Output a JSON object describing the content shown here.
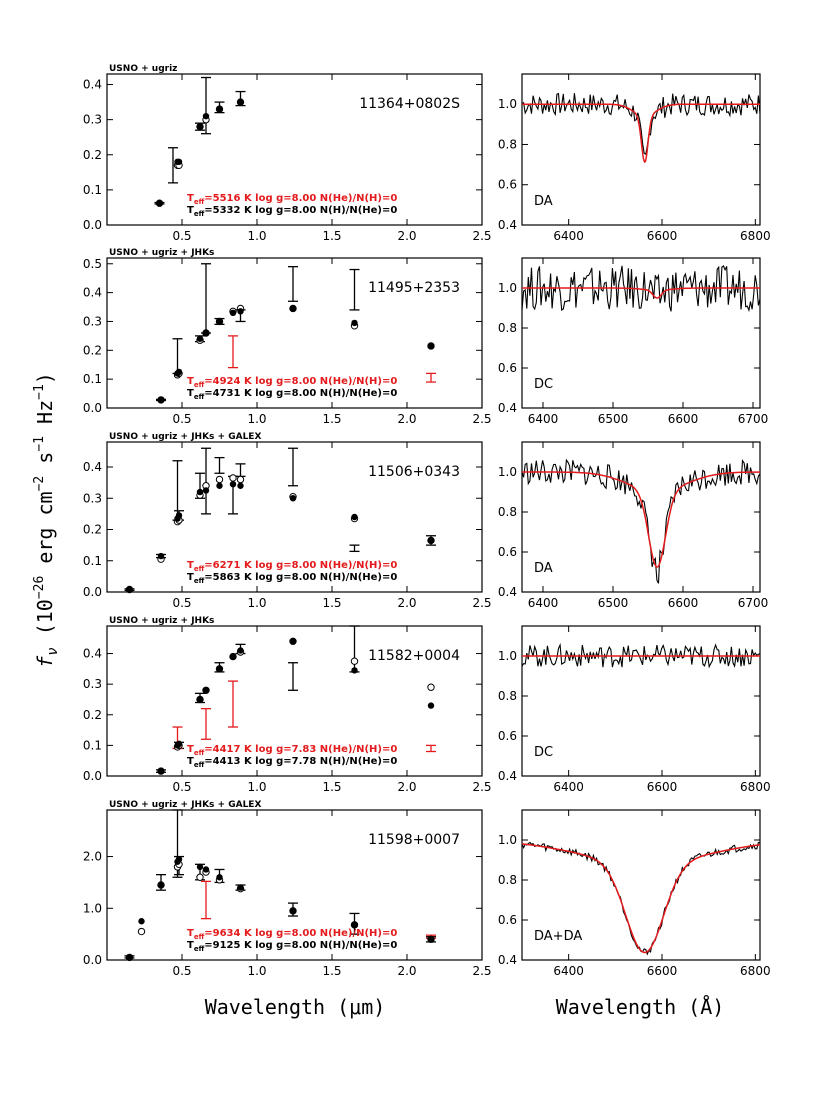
{
  "figure": {
    "x_title_left": "Wavelength (μm)",
    "x_title_right": "Wavelength (Å)",
    "y_title": "f_ν (10^-26 erg cm^-2 s^-1 Hz^-1)",
    "y_title_parts": {
      "f": "f",
      "nu": "ν",
      "open": " (10",
      "exp1": "−26",
      "erg": " erg cm",
      "exp2": "−2",
      "s": " s",
      "exp3": "−1",
      "hz": " Hz",
      "exp4": "−1",
      "close": ")"
    },
    "colors": {
      "data": "#000000",
      "model": "#e41a1c"
    }
  },
  "chart_data": [
    {
      "id": "p1",
      "type": "scatter",
      "object": "11364+0802S",
      "photometry_label": "USNO + ugriz",
      "xlim": [
        0,
        2.5
      ],
      "ylim": [
        0,
        0.43
      ],
      "xticks": [
        0.5,
        1.0,
        1.5,
        2.0,
        2.5
      ],
      "xtick_labels": [
        "0.5",
        "1.0",
        "1.5",
        "2.0",
        "2.5"
      ],
      "yticks": [
        0,
        0.1,
        0.2,
        0.3,
        0.4
      ],
      "ytick_labels": [
        "0.0",
        "0.1",
        "0.2",
        "0.3",
        "0.4"
      ],
      "observed_black": [
        {
          "x": 0.44,
          "lo": 0.12,
          "hi": 0.22
        },
        {
          "x": 0.66,
          "lo": 0.26,
          "hi": 0.42
        },
        {
          "x": 0.75,
          "lo": 0.32,
          "hi": 0.35
        },
        {
          "x": 0.89,
          "lo": 0.34,
          "hi": 0.38
        },
        {
          "x": 0.62,
          "lo": 0.27,
          "hi": 0.29
        },
        {
          "x": 0.35,
          "lo": 0.06,
          "hi": 0.064
        }
      ],
      "observed_red": [],
      "model_filled": [
        [
          0.35,
          0.062
        ],
        [
          0.47,
          0.18
        ],
        [
          0.48,
          0.18
        ],
        [
          0.62,
          0.28
        ],
        [
          0.66,
          0.31
        ],
        [
          0.75,
          0.33
        ],
        [
          0.89,
          0.35
        ]
      ],
      "model_open": [
        [
          0.35,
          0.062
        ],
        [
          0.47,
          0.17
        ],
        [
          0.48,
          0.17
        ],
        [
          0.62,
          0.28
        ],
        [
          0.66,
          0.3
        ],
        [
          0.75,
          0.33
        ],
        [
          0.89,
          0.35
        ]
      ],
      "fit_red": "T_eff=5516 K   log g=8.00   N(He)/N(H)=0",
      "fit_black": "T_eff=5332 K   log g=8.00   N(H)/N(He)=0",
      "fit_red_parts": {
        "t": "T",
        "sub": "eff",
        "rest": "=5516 K   log g=8.00   N(He)/N(H)=0"
      },
      "fit_black_parts": {
        "t": "T",
        "sub": "eff",
        "rest": "=5332 K   log g=8.00   N(H)/N(He)=0"
      },
      "spectrum": {
        "xlim": [
          6300,
          6810
        ],
        "ylim": [
          0.4,
          1.15
        ],
        "xticks": [
          6400,
          6600,
          6800
        ],
        "xtick_labels": [
          "6400",
          "6600",
          "6800"
        ],
        "yticks": [
          0.4,
          0.6,
          0.8,
          1.0
        ],
        "ytick_labels": [
          "0.4",
          "0.6",
          "0.8",
          "1.0"
        ],
        "class": "DA",
        "line_center": 6563,
        "line_depth": 0.23,
        "line_width": 7,
        "noise": 0.035
      }
    },
    {
      "id": "p2",
      "type": "scatter",
      "object": "11495+2353",
      "photometry_label": "USNO + ugriz + JHKs",
      "xlim": [
        0,
        2.5
      ],
      "ylim": [
        0,
        0.52
      ],
      "xticks": [
        0.5,
        1.0,
        1.5,
        2.0,
        2.5
      ],
      "xtick_labels": [
        "0.5",
        "1.0",
        "1.5",
        "2.0",
        "2.5"
      ],
      "yticks": [
        0,
        0.1,
        0.2,
        0.3,
        0.4,
        0.5
      ],
      "ytick_labels": [
        "0.0",
        "0.1",
        "0.2",
        "0.3",
        "0.4",
        "0.5"
      ],
      "observed_black": [
        {
          "x": 0.36,
          "lo": 0.026,
          "hi": 0.03
        },
        {
          "x": 0.47,
          "lo": 0.12,
          "hi": 0.24
        },
        {
          "x": 0.62,
          "lo": 0.23,
          "hi": 0.25
        },
        {
          "x": 0.66,
          "lo": 0.26,
          "hi": 0.5
        },
        {
          "x": 0.75,
          "lo": 0.29,
          "hi": 0.31
        },
        {
          "x": 0.89,
          "lo": 0.3,
          "hi": 0.34
        },
        {
          "x": 1.24,
          "lo": 0.37,
          "hi": 0.49
        },
        {
          "x": 1.65,
          "lo": 0.34,
          "hi": 0.48
        }
      ],
      "observed_red": [
        {
          "x": 0.84,
          "lo": 0.14,
          "hi": 0.25
        },
        {
          "x": 2.16,
          "lo": 0.09,
          "hi": 0.12
        }
      ],
      "model_filled": [
        [
          0.36,
          0.028
        ],
        [
          0.47,
          0.12
        ],
        [
          0.48,
          0.125
        ],
        [
          0.62,
          0.24
        ],
        [
          0.66,
          0.26
        ],
        [
          0.75,
          0.3
        ],
        [
          0.84,
          0.33
        ],
        [
          0.89,
          0.335
        ],
        [
          1.24,
          0.345
        ],
        [
          1.65,
          0.295
        ],
        [
          2.16,
          0.215
        ]
      ],
      "model_open": [
        [
          0.36,
          0.028
        ],
        [
          0.47,
          0.115
        ],
        [
          0.48,
          0.12
        ],
        [
          0.62,
          0.235
        ],
        [
          0.66,
          0.26
        ],
        [
          0.75,
          0.3
        ],
        [
          0.84,
          0.335
        ],
        [
          0.89,
          0.345
        ],
        [
          1.24,
          0.345
        ],
        [
          1.65,
          0.285
        ],
        [
          2.16,
          0.215
        ]
      ],
      "fit_red": "T_eff=4924 K   log g=8.00   N(He)/N(H)=0",
      "fit_black": "T_eff=4731 K   log g=8.00   N(H)/N(He)=0",
      "fit_red_parts": {
        "t": "T",
        "sub": "eff",
        "rest": "=4924 K   log g=8.00   N(He)/N(H)=0"
      },
      "fit_black_parts": {
        "t": "T",
        "sub": "eff",
        "rest": "=4731 K   log g=8.00   N(H)/N(He)=0"
      },
      "spectrum": {
        "xlim": [
          6370,
          6710
        ],
        "ylim": [
          0.4,
          1.15
        ],
        "xticks": [
          6400,
          6500,
          6600,
          6700
        ],
        "xtick_labels": [
          "6400",
          "6500",
          "6600",
          "6700"
        ],
        "yticks": [
          0.4,
          0.6,
          0.8,
          1.0
        ],
        "ytick_labels": [
          "0.4",
          "0.6",
          "0.8",
          "1.0"
        ],
        "class": "DC",
        "line_center": 6563,
        "line_depth": 0.04,
        "line_width": 6,
        "noise": 0.07
      }
    },
    {
      "id": "p3",
      "type": "scatter",
      "object": "11506+0343",
      "photometry_label": "USNO + ugriz + JHKs + GALEX",
      "xlim": [
        0,
        2.5
      ],
      "ylim": [
        0,
        0.48
      ],
      "xticks": [
        0.5,
        1.0,
        1.5,
        2.0,
        2.5
      ],
      "xtick_labels": [
        "0.5",
        "1.0",
        "1.5",
        "2.0",
        "2.5"
      ],
      "yticks": [
        0,
        0.1,
        0.2,
        0.3,
        0.4
      ],
      "ytick_labels": [
        "0.0",
        "0.1",
        "0.2",
        "0.3",
        "0.4"
      ],
      "observed_black": [
        {
          "x": 0.15,
          "lo": 0.005,
          "hi": 0.01
        },
        {
          "x": 0.36,
          "lo": 0.11,
          "hi": 0.12
        },
        {
          "x": 0.47,
          "lo": 0.23,
          "hi": 0.42
        },
        {
          "x": 0.48,
          "lo": 0.23,
          "hi": 0.26
        },
        {
          "x": 0.62,
          "lo": 0.3,
          "hi": 0.38
        },
        {
          "x": 0.66,
          "lo": 0.25,
          "hi": 0.46
        },
        {
          "x": 0.75,
          "lo": 0.38,
          "hi": 0.43
        },
        {
          "x": 0.84,
          "lo": 0.25,
          "hi": 0.37
        },
        {
          "x": 0.89,
          "lo": 0.37,
          "hi": 0.41
        },
        {
          "x": 1.24,
          "lo": 0.34,
          "hi": 0.46
        },
        {
          "x": 1.65,
          "lo": 0.13,
          "hi": 0.15
        },
        {
          "x": 2.16,
          "lo": 0.15,
          "hi": 0.18
        }
      ],
      "observed_red": [],
      "model_filled": [
        [
          0.15,
          0.008
        ],
        [
          0.36,
          0.115
        ],
        [
          0.47,
          0.235
        ],
        [
          0.48,
          0.245
        ],
        [
          0.62,
          0.32
        ],
        [
          0.66,
          0.325
        ],
        [
          0.75,
          0.34
        ],
        [
          0.84,
          0.345
        ],
        [
          0.89,
          0.34
        ],
        [
          1.24,
          0.3
        ],
        [
          1.65,
          0.24
        ],
        [
          2.16,
          0.165
        ]
      ],
      "model_open": [
        [
          0.15,
          0.008
        ],
        [
          0.36,
          0.105
        ],
        [
          0.47,
          0.225
        ],
        [
          0.48,
          0.23
        ],
        [
          0.62,
          0.31
        ],
        [
          0.66,
          0.34
        ],
        [
          0.75,
          0.36
        ],
        [
          0.84,
          0.365
        ],
        [
          0.89,
          0.36
        ],
        [
          1.24,
          0.305
        ],
        [
          1.65,
          0.235
        ],
        [
          2.16,
          0.165
        ]
      ],
      "fit_red": "T_eff=6271 K   log g=8.00   N(He)/N(H)=0",
      "fit_black": "T_eff=5863 K   log g=8.00   N(H)/N(He)=0",
      "fit_red_parts": {
        "t": "T",
        "sub": "eff",
        "rest": "=6271 K   log g=8.00   N(He)/N(H)=0"
      },
      "fit_black_parts": {
        "t": "T",
        "sub": "eff",
        "rest": "=5863 K   log g=8.00   N(H)/N(He)=0"
      },
      "spectrum": {
        "xlim": [
          6370,
          6710
        ],
        "ylim": [
          0.4,
          1.15
        ],
        "xticks": [
          6400,
          6500,
          6600,
          6700
        ],
        "xtick_labels": [
          "6400",
          "6500",
          "6600",
          "6700"
        ],
        "yticks": [
          0.4,
          0.6,
          0.8,
          1.0
        ],
        "ytick_labels": [
          "0.4",
          "0.6",
          "0.8",
          "1.0"
        ],
        "class": "DA",
        "line_center": 6563,
        "line_depth": 0.38,
        "line_width": 12,
        "noise": 0.04
      }
    },
    {
      "id": "p4",
      "type": "scatter",
      "object": "11582+0004",
      "photometry_label": "USNO + ugriz + JHKs",
      "xlim": [
        0,
        2.5
      ],
      "ylim": [
        0,
        0.49
      ],
      "xticks": [
        0.5,
        1.0,
        1.5,
        2.0,
        2.5
      ],
      "xtick_labels": [
        "0.5",
        "1.0",
        "1.5",
        "2.0",
        "2.5"
      ],
      "yticks": [
        0,
        0.1,
        0.2,
        0.3,
        0.4
      ],
      "ytick_labels": [
        "0.0",
        "0.1",
        "0.2",
        "0.3",
        "0.4"
      ],
      "observed_black": [
        {
          "x": 0.36,
          "lo": 0.012,
          "hi": 0.02
        },
        {
          "x": 0.48,
          "lo": 0.09,
          "hi": 0.11
        },
        {
          "x": 0.62,
          "lo": 0.24,
          "hi": 0.27
        },
        {
          "x": 0.75,
          "lo": 0.34,
          "hi": 0.37
        },
        {
          "x": 0.89,
          "lo": 0.4,
          "hi": 0.43
        },
        {
          "x": 1.24,
          "lo": 0.28,
          "hi": 0.37
        },
        {
          "x": 1.65,
          "lo": 0.34,
          "hi": 0.49
        }
      ],
      "observed_red": [
        {
          "x": 0.47,
          "lo": 0.09,
          "hi": 0.16
        },
        {
          "x": 0.66,
          "lo": 0.12,
          "hi": 0.22
        },
        {
          "x": 0.84,
          "lo": 0.16,
          "hi": 0.31
        },
        {
          "x": 2.16,
          "lo": 0.08,
          "hi": 0.1
        }
      ],
      "model_filled": [
        [
          0.36,
          0.016
        ],
        [
          0.47,
          0.1
        ],
        [
          0.48,
          0.105
        ],
        [
          0.62,
          0.25
        ],
        [
          0.66,
          0.28
        ],
        [
          0.75,
          0.35
        ],
        [
          0.84,
          0.39
        ],
        [
          0.89,
          0.41
        ],
        [
          1.24,
          0.44
        ],
        [
          1.65,
          0.345
        ],
        [
          2.16,
          0.23
        ]
      ],
      "model_open": [
        [
          0.36,
          0.016
        ],
        [
          0.47,
          0.095
        ],
        [
          0.48,
          0.1
        ],
        [
          0.62,
          0.25
        ],
        [
          0.66,
          0.28
        ],
        [
          0.75,
          0.35
        ],
        [
          0.84,
          0.39
        ],
        [
          0.89,
          0.405
        ],
        [
          1.24,
          0.44
        ],
        [
          1.65,
          0.375
        ],
        [
          2.16,
          0.29
        ]
      ],
      "fit_red": "T_eff=4417 K   log g=7.83   N(He)/N(H)=0",
      "fit_black": "T_eff=4413 K   log g=7.78   N(H)/N(He)=0",
      "fit_red_parts": {
        "t": "T",
        "sub": "eff",
        "rest": "=4417 K   log g=7.83   N(He)/N(H)=0"
      },
      "fit_black_parts": {
        "t": "T",
        "sub": "eff",
        "rest": "=4413 K   log g=7.78   N(H)/N(He)=0"
      },
      "spectrum": {
        "xlim": [
          6300,
          6810
        ],
        "ylim": [
          0.4,
          1.15
        ],
        "xticks": [
          6400,
          6600,
          6800
        ],
        "xtick_labels": [
          "6400",
          "6600",
          "6800"
        ],
        "yticks": [
          0.4,
          0.6,
          0.8,
          1.0
        ],
        "ytick_labels": [
          "0.4",
          "0.6",
          "0.8",
          "1.0"
        ],
        "class": "DC",
        "line_center": 6563,
        "line_depth": 0.0,
        "line_width": 6,
        "noise": 0.035
      }
    },
    {
      "id": "p5",
      "type": "scatter",
      "object": "11598+0007",
      "photometry_label": "USNO + ugriz + JHKs + GALEX",
      "xlim": [
        0,
        2.5
      ],
      "ylim": [
        0,
        2.9
      ],
      "xticks": [
        0.5,
        1.0,
        1.5,
        2.0,
        2.5
      ],
      "xtick_labels": [
        "0.5",
        "1.0",
        "1.5",
        "2.0",
        "2.5"
      ],
      "yticks": [
        0,
        1.0,
        2.0
      ],
      "ytick_labels": [
        "0.0",
        "1.0",
        "2.0"
      ],
      "observed_black": [
        {
          "x": 0.15,
          "lo": 0.04,
          "hi": 0.08
        },
        {
          "x": 0.36,
          "lo": 1.35,
          "hi": 1.65
        },
        {
          "x": 0.47,
          "lo": 1.6,
          "hi": 2.9
        },
        {
          "x": 0.48,
          "lo": 1.65,
          "hi": 2.0
        },
        {
          "x": 0.62,
          "lo": 1.55,
          "hi": 1.85
        },
        {
          "x": 0.75,
          "lo": 1.5,
          "hi": 1.75
        },
        {
          "x": 0.89,
          "lo": 1.35,
          "hi": 1.45
        },
        {
          "x": 1.24,
          "lo": 0.85,
          "hi": 1.1
        },
        {
          "x": 1.65,
          "lo": 0.5,
          "hi": 0.9
        },
        {
          "x": 2.16,
          "lo": 0.35,
          "hi": 0.45
        }
      ],
      "observed_red": [
        {
          "x": 0.66,
          "lo": 0.8,
          "hi": 1.52
        },
        {
          "x": 2.16,
          "lo": 0.42,
          "hi": 0.48
        }
      ],
      "model_filled": [
        [
          0.15,
          0.05
        ],
        [
          0.23,
          0.75
        ],
        [
          0.36,
          1.45
        ],
        [
          0.47,
          1.9
        ],
        [
          0.48,
          1.95
        ],
        [
          0.62,
          1.8
        ],
        [
          0.66,
          1.75
        ],
        [
          0.75,
          1.6
        ],
        [
          0.89,
          1.4
        ],
        [
          1.24,
          0.95
        ],
        [
          1.65,
          0.68
        ],
        [
          2.16,
          0.4
        ]
      ],
      "model_open": [
        [
          0.15,
          0.05
        ],
        [
          0.23,
          0.55
        ],
        [
          0.36,
          1.45
        ],
        [
          0.47,
          1.8
        ],
        [
          0.48,
          1.85
        ],
        [
          0.62,
          1.6
        ],
        [
          0.66,
          1.7
        ],
        [
          0.75,
          1.55
        ],
        [
          0.89,
          1.38
        ],
        [
          1.24,
          0.95
        ],
        [
          1.65,
          0.68
        ],
        [
          2.16,
          0.4
        ]
      ],
      "fit_red": "T_eff=9634 K   log g=8.00   N(He)/N(H)=0",
      "fit_black": "T_eff=9125 K   log g=8.00   N(H)/N(He)=0",
      "fit_red_parts": {
        "t": "T",
        "sub": "eff",
        "rest": "=9634 K   log g=8.00   N(He)/N(H)=0"
      },
      "fit_black_parts": {
        "t": "T",
        "sub": "eff",
        "rest": "=9125 K   log g=8.00   N(H)/N(He)=0"
      },
      "spectrum": {
        "xlim": [
          6300,
          6810
        ],
        "ylim": [
          0.4,
          1.15
        ],
        "xticks": [
          6400,
          6600,
          6800
        ],
        "xtick_labels": [
          "6400",
          "6600",
          "6800"
        ],
        "yticks": [
          0.4,
          0.6,
          0.8,
          1.0
        ],
        "ytick_labels": [
          "0.4",
          "0.6",
          "0.8",
          "1.0"
        ],
        "class": "DA+DA",
        "line_center": 6563,
        "line_depth": 0.45,
        "line_width": 40,
        "noise": 0.012
      }
    }
  ]
}
